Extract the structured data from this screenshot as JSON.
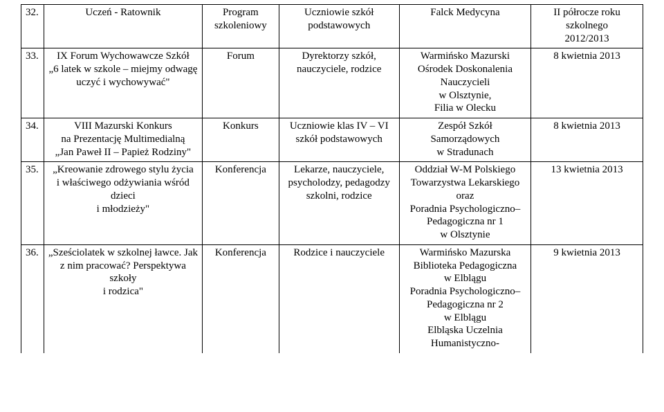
{
  "rows": [
    {
      "num": "32.",
      "title": "Uczeń - Ratownik",
      "type": "Program\nszkoleniowy",
      "audience": "Uczniowie szkół\npodstawowych",
      "organizer": "Falck Medycyna",
      "date": "II półrocze roku\nszkolnego\n2012/2013"
    },
    {
      "num": "33.",
      "title": "IX Forum Wychowawcze Szkół\n„6 latek w szkole – miejmy odwagę\nuczyć i wychowywać\"",
      "type": "Forum",
      "audience": "Dyrektorzy szkół,\nnauczyciele, rodzice",
      "organizer": "Warmińsko Mazurski\nOśrodek Doskonalenia\nNauczycieli\nw Olsztynie,\nFilia w Olecku",
      "date": "8 kwietnia 2013"
    },
    {
      "num": "34.",
      "title": "VIII Mazurski Konkurs\nna Prezentację Multimedialną\n„Jan Paweł II – Papież Rodziny\"",
      "type": "Konkurs",
      "audience": "Uczniowie klas IV – VI\nszkół podstawowych",
      "organizer": "Zespół Szkół\nSamorządowych\nw Stradunach",
      "date": "8 kwietnia 2013"
    },
    {
      "num": "35.",
      "title": "„Kreowanie zdrowego stylu życia\ni właściwego odżywiania wśród dzieci\ni młodzieży\"",
      "type": "Konferencja",
      "audience": "Lekarze, nauczyciele,\npsycholodzy, pedagodzy\nszkolni, rodzice",
      "organizer": "Oddział W-M Polskiego\nTowarzystwa Lekarskiego\noraz\nPoradnia Psychologiczno–\nPedagogiczna nr 1\nw Olsztynie",
      "date": "13 kwietnia 2013"
    },
    {
      "num": "36.",
      "title": "„Sześciolatek w szkolnej ławce. Jak\nz nim pracować? Perspektywa szkoły\ni rodzica\"",
      "type": "Konferencja",
      "audience": "Rodzice i nauczyciele",
      "organizer": "Warmińsko Mazurska\nBiblioteka Pedagogiczna\nw Elblągu\nPoradnia Psychologiczno–\nPedagogiczna nr 2\nw Elblągu\nElbląska Uczelnia\nHumanistyczno-",
      "date": "9 kwietnia 2013"
    }
  ]
}
